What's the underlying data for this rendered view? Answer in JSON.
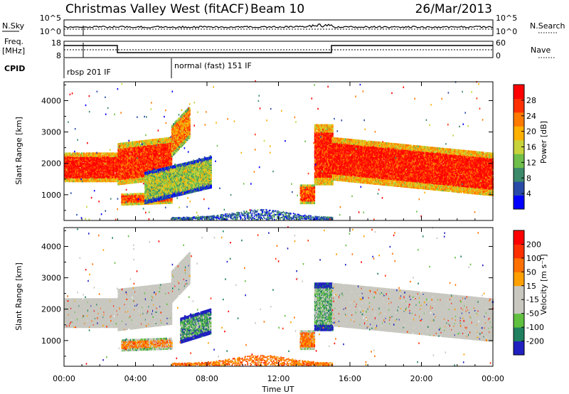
{
  "header": {
    "title": "Christmas Valley West (fitACF)",
    "beam": "Beam 10",
    "date": "26/Mar/2013"
  },
  "top_panel": {
    "left_labels": {
      "nsky": "N.Sky",
      "freq": "Freq.",
      "freq_unit": "[MHz]",
      "cpid": "CPID"
    },
    "right_labels": {
      "nsearch": "N.Search",
      "nave": "Nave"
    },
    "nsky_ticks": [
      "10^5",
      "10^0"
    ],
    "nsearch_ticks": [
      "10^5",
      "10^0"
    ],
    "freq_ticks": [
      "18",
      "8"
    ],
    "nave_ticks": [
      "60",
      "0"
    ],
    "cpid_segments": [
      {
        "start_hour": 0,
        "label": "rbsp 201 IF"
      },
      {
        "start_hour": 6,
        "label": "normal (fast) 151 IF"
      }
    ]
  },
  "colors": {
    "power_scale": [
      "#0000ff",
      "#2a4aa8",
      "#3c8a6a",
      "#6fbf4a",
      "#c8d23a",
      "#ffb000",
      "#ff7a00",
      "#ff3000",
      "#ff0000"
    ],
    "velocity_scale": [
      "#2020c0",
      "#208060",
      "#60c040",
      "#c8c8c0",
      "#c8c8c0",
      "#ffa000",
      "#ff7000",
      "#ff3000",
      "#ff0000"
    ],
    "ground_scatter": "#bebebe"
  },
  "chart_data": [
    {
      "type": "heatmap",
      "name": "power",
      "ylabel": "Slant Range [km]",
      "xlim": [
        0,
        24
      ],
      "ylim": [
        180,
        4600
      ],
      "yticks": [
        1000,
        2000,
        3000,
        4000
      ],
      "colorbar": {
        "label": "Power [dB]",
        "ticks": [
          4,
          8,
          12,
          16,
          20,
          24,
          28
        ],
        "range": [
          0,
          32
        ]
      },
      "bands": [
        {
          "t0": 0.0,
          "t1": 3.0,
          "r0": 1400,
          "r1": 2300,
          "slope": 0,
          "level": 0.9
        },
        {
          "t0": 3.0,
          "t1": 6.0,
          "r0": 1300,
          "r1": 2600,
          "slope": 200,
          "level": 0.85
        },
        {
          "t0": 6.0,
          "t1": 7.0,
          "r0": 2200,
          "r1": 3200,
          "slope": 600,
          "level": 0.7
        },
        {
          "t0": 3.2,
          "t1": 6.0,
          "r0": 650,
          "r1": 1000,
          "slope": 60,
          "level": 0.82
        },
        {
          "t0": 4.5,
          "t1": 8.2,
          "r0": 700,
          "r1": 1700,
          "slope": 500,
          "level": 0.45
        },
        {
          "t0": 13.2,
          "t1": 14.0,
          "r0": 700,
          "r1": 1300,
          "slope": 0,
          "level": 0.8
        },
        {
          "t0": 14.0,
          "t1": 15.0,
          "r0": 1300,
          "r1": 3200,
          "slope": 0,
          "level": 0.88
        },
        {
          "t0": 15.0,
          "t1": 24.0,
          "r0": 1450,
          "r1": 2800,
          "slope": -500,
          "level": 0.9
        }
      ]
    },
    {
      "type": "heatmap",
      "name": "velocity",
      "xlabel": "Time UT",
      "ylabel": "Slant Range [km]",
      "xlim": [
        0,
        24
      ],
      "xticks": [
        "00:00",
        "04:00",
        "08:00",
        "12:00",
        "16:00",
        "20:00",
        "00:00"
      ],
      "ylim": [
        180,
        4600
      ],
      "yticks": [
        1000,
        2000,
        3000,
        4000
      ],
      "colorbar": {
        "label": "Velocity [m s⁻¹]",
        "ticks": [
          "200",
          "100",
          "50",
          "15",
          "-15",
          "-50",
          "-100",
          "-200"
        ]
      },
      "bands": [
        {
          "t0": 0.0,
          "t1": 3.0,
          "r0": 1400,
          "r1": 2300,
          "slope": 0,
          "level": 0.5
        },
        {
          "t0": 3.0,
          "t1": 6.0,
          "r0": 1300,
          "r1": 2600,
          "slope": 200,
          "level": 0.5
        },
        {
          "t0": 6.0,
          "t1": 7.0,
          "r0": 2200,
          "r1": 3200,
          "slope": 600,
          "level": 0.5
        },
        {
          "t0": 3.2,
          "t1": 6.0,
          "r0": 650,
          "r1": 1000,
          "slope": 60,
          "level": 0.65
        },
        {
          "t0": 6.5,
          "t1": 8.2,
          "r0": 900,
          "r1": 1700,
          "slope": 300,
          "level": 0.25
        },
        {
          "t0": 13.2,
          "t1": 14.0,
          "r0": 700,
          "r1": 1300,
          "slope": 0,
          "level": 0.7
        },
        {
          "t0": 14.0,
          "t1": 15.0,
          "r0": 1300,
          "r1": 2800,
          "slope": 0,
          "level": 0.3
        },
        {
          "t0": 15.0,
          "t1": 24.0,
          "r0": 1450,
          "r1": 2800,
          "slope": -500,
          "level": 0.5
        }
      ]
    }
  ]
}
